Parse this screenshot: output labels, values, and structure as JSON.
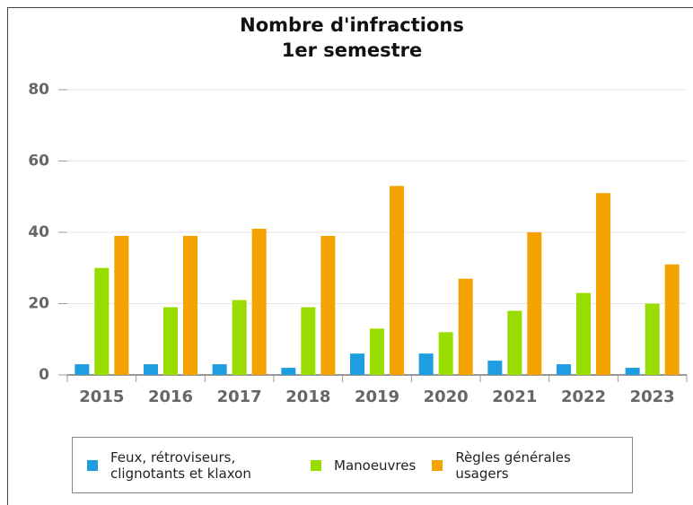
{
  "chart_data": {
    "type": "bar",
    "title": "Nombre d'infractions",
    "subtitle": "1er semestre",
    "categories": [
      "2015",
      "2016",
      "2017",
      "2018",
      "2019",
      "2020",
      "2021",
      "2022",
      "2023"
    ],
    "series": [
      {
        "name": "Feux, rétroviseurs, clignotants et klaxon",
        "color": "#1e9de0",
        "values": [
          3,
          3,
          3,
          2,
          6,
          6,
          4,
          3,
          2
        ]
      },
      {
        "name": "Manoeuvres",
        "color": "#99dd00",
        "values": [
          30,
          19,
          21,
          19,
          13,
          12,
          18,
          23,
          20
        ]
      },
      {
        "name": "Règles générales usagers",
        "color": "#f5a300",
        "values": [
          39,
          39,
          41,
          39,
          53,
          27,
          40,
          51,
          31
        ]
      }
    ],
    "ylim": [
      0,
      80
    ],
    "yticks": [
      0,
      20,
      40,
      60,
      80
    ],
    "grid": true,
    "legend": "bottom"
  }
}
